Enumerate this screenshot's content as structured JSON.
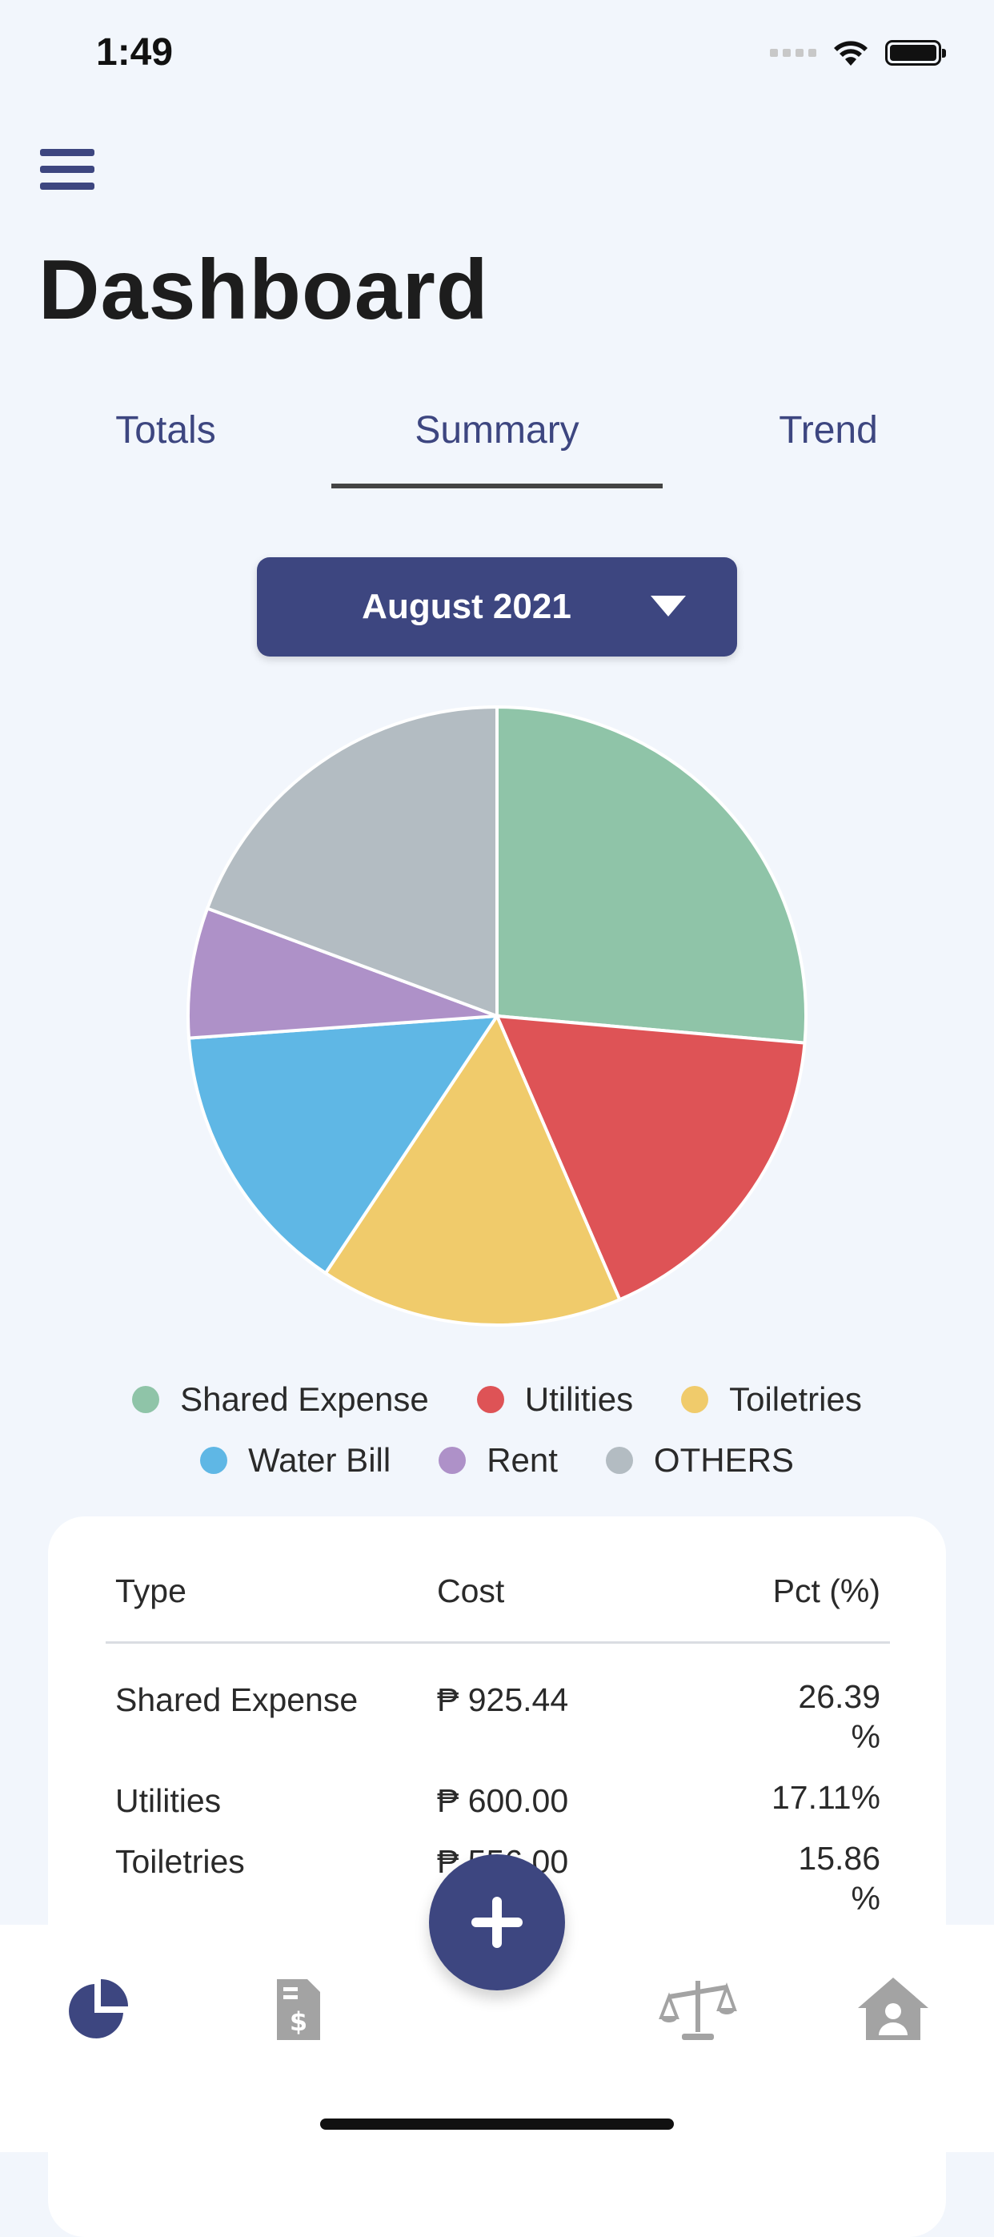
{
  "status_bar": {
    "time": "1:49"
  },
  "header": {
    "title": "Dashboard"
  },
  "tabs": [
    {
      "label": "Totals"
    },
    {
      "label": "Summary",
      "selected": true
    },
    {
      "label": "Trend"
    }
  ],
  "month_selector": {
    "value": "August 2021"
  },
  "colors": {
    "accent": "#3d4680",
    "background": "#f2f6fc"
  },
  "chart_data": {
    "type": "pie",
    "categories": [
      "Shared Expense",
      "Utilities",
      "Toiletries",
      "Water Bill",
      "Rent",
      "OTHERS"
    ],
    "values": [
      26.39,
      17.11,
      15.86,
      14.5,
      6.8,
      19.34
    ],
    "colors": [
      "#8fc4a8",
      "#de5356",
      "#f0cb6b",
      "#5fb7e5",
      "#ae91c8",
      "#b3bcc2"
    ],
    "legend_placement": "bottom"
  },
  "legend": {
    "row1": [
      "Shared Expense",
      "Utilities",
      "Toiletries"
    ],
    "row2": [
      "Water Bill",
      "Rent",
      "OTHERS"
    ]
  },
  "table": {
    "headers": {
      "type": "Type",
      "cost": "Cost",
      "pct": "Pct (%)"
    },
    "rows": [
      {
        "type": "Shared Expense",
        "cost": "₱ 925.44",
        "pct_line1": "26.39",
        "pct_line2": "%"
      },
      {
        "type": "Utilities",
        "cost": "₱ 600.00",
        "pct_line1": "17.11%",
        "pct_line2": ""
      },
      {
        "type": "Toiletries",
        "cost": "₱ 556.00",
        "pct_line1": "15.86",
        "pct_line2": "%"
      }
    ]
  },
  "bottom_nav": {
    "items": [
      {
        "icon": "pie-chart-icon",
        "active": true
      },
      {
        "icon": "invoice-icon",
        "active": false
      },
      {
        "icon": "add-icon",
        "active": false
      },
      {
        "icon": "balance-scale-icon",
        "active": false
      },
      {
        "icon": "house-user-icon",
        "active": false
      }
    ]
  }
}
